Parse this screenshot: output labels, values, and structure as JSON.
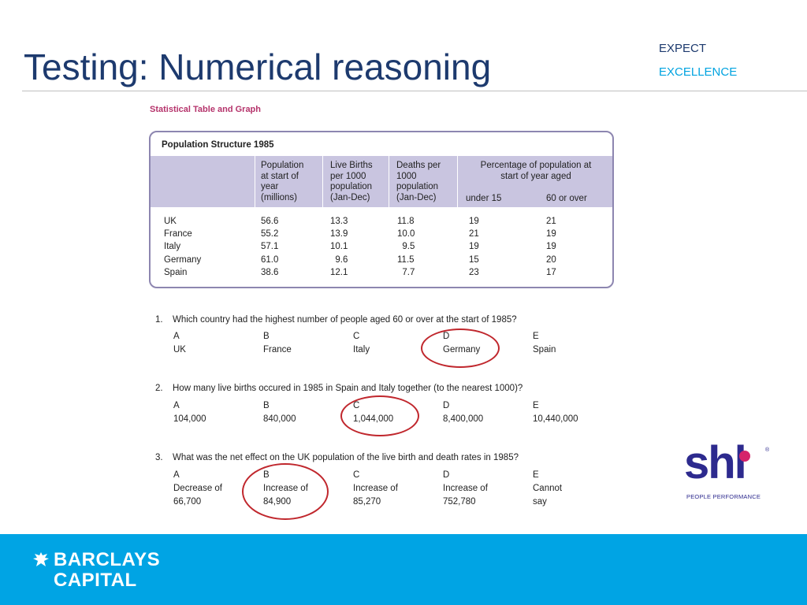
{
  "slide": {
    "title": "Testing: Numerical reasoning",
    "tagline": [
      "EXPECT",
      "EXCELLENCE"
    ]
  },
  "panel": {
    "heading": "Statistical Table and Graph",
    "table": {
      "title": "Population Structure 1985",
      "headers": {
        "population": [
          "Population",
          "at start of",
          "year",
          "(millions)"
        ],
        "births": [
          "Live Births",
          "per 1000",
          "population",
          "(Jan-Dec)"
        ],
        "deaths": [
          "Deaths per",
          "1000",
          "population",
          "(Jan-Dec)"
        ],
        "percentage": [
          "Percentage of population at",
          "start of year aged"
        ],
        "under15": "under 15",
        "over60": "60 or over"
      },
      "countries": [
        "UK",
        "France",
        "Italy",
        "Germany",
        "Spain"
      ],
      "population": [
        "56.6",
        "55.2",
        "57.1",
        "61.0",
        "38.6"
      ],
      "births": [
        "13.3",
        "13.9",
        "10.1",
        "  9.6",
        "12.1"
      ],
      "deaths": [
        "11.8",
        "10.0",
        "  9.5",
        "11.5",
        "  7.7"
      ],
      "under15": [
        "19",
        "21",
        "19",
        "15",
        "23"
      ],
      "over60": [
        "21",
        "19",
        "19",
        "20",
        "17"
      ]
    },
    "questions": [
      {
        "number": "1.",
        "text": "Which country had the highest number of people aged 60 or over at the start of 1985?",
        "options": [
          {
            "letter": "A",
            "lines": [
              "UK"
            ]
          },
          {
            "letter": "B",
            "lines": [
              "France"
            ]
          },
          {
            "letter": "C",
            "lines": [
              "Italy"
            ]
          },
          {
            "letter": "D",
            "lines": [
              "Germany"
            ]
          },
          {
            "letter": "E",
            "lines": [
              "Spain"
            ]
          }
        ]
      },
      {
        "number": "2.",
        "text": "How many live births occured in 1985 in Spain and Italy together (to the nearest 1000)?",
        "options": [
          {
            "letter": "A",
            "lines": [
              "104,000"
            ]
          },
          {
            "letter": "B",
            "lines": [
              "840,000"
            ]
          },
          {
            "letter": "C",
            "lines": [
              "1,044,000"
            ]
          },
          {
            "letter": "D",
            "lines": [
              "8,400,000"
            ]
          },
          {
            "letter": "E",
            "lines": [
              "10,440,000"
            ]
          }
        ]
      },
      {
        "number": "3.",
        "text": "What was the net effect on the UK population of the live birth and death rates in 1985?",
        "options": [
          {
            "letter": "A",
            "lines": [
              "Decrease of",
              "66,700"
            ]
          },
          {
            "letter": "B",
            "lines": [
              "Increase of",
              "84,900"
            ]
          },
          {
            "letter": "C",
            "lines": [
              "Increase of",
              "85,270"
            ]
          },
          {
            "letter": "D",
            "lines": [
              "Increase of",
              "752,780"
            ]
          },
          {
            "letter": "E",
            "lines": [
              "Cannot",
              "say"
            ]
          }
        ]
      }
    ]
  },
  "logos": {
    "shl": {
      "word": "shl",
      "registered": "®",
      "tagline": "PEOPLE PERFORMANCE"
    },
    "barclays": {
      "line1": "BARCLAYS",
      "line2": "CAPITAL"
    }
  },
  "colors": {
    "title": "#1d3a6e",
    "accent": "#00a3e0",
    "footer": "#00a4e4",
    "table_header": "#c9c5e0",
    "circle": "#c0272d",
    "heading_magenta": "#b5336b"
  }
}
